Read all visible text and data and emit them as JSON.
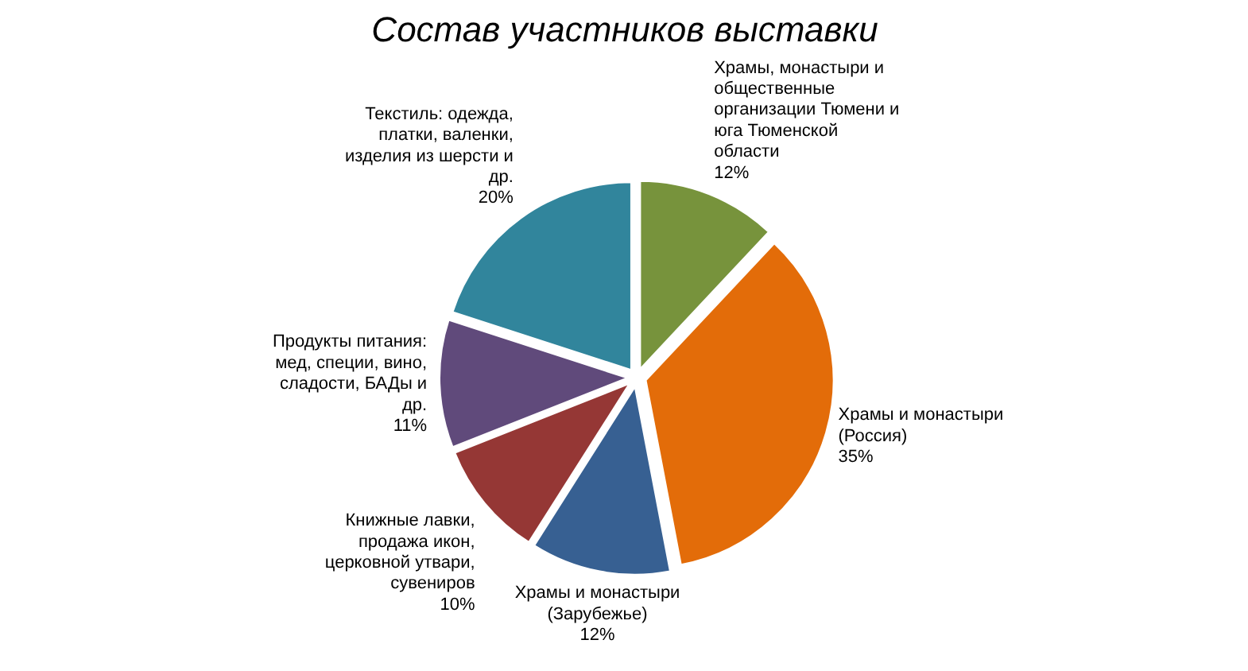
{
  "chart_data": {
    "type": "pie",
    "title": "Состав участников выставки",
    "categories": [
      "Храмы, монастыри и\nобщественные\nорганизации Тюмени и\nюга Тюменской\nобласти",
      "Храмы и монастыри\n(Россия)",
      "Храмы и монастыри\n(Зарубежье)",
      "Книжные лавки,\nпродажа икон,\nцерковной утвари,\nсувениров",
      "Продукты питания:\nмед, специи, вино,\nсладости, БАДы и\nдр.",
      "Текстиль: одежда,\nплатки, валенки,\nизделия из шерсти и\nдр."
    ],
    "values": [
      12,
      35,
      12,
      10,
      11,
      20
    ],
    "value_labels": [
      "12%",
      "35%",
      "12%",
      "10%",
      "11%",
      "20%"
    ],
    "colors": [
      "#77933c",
      "#e36c09",
      "#376092",
      "#953735",
      "#604a7b",
      "#31859c"
    ]
  }
}
